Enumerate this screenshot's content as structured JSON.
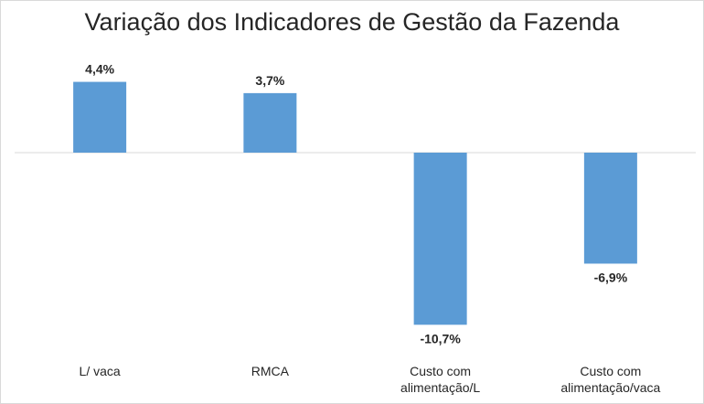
{
  "chart_data": {
    "type": "bar",
    "title": "Variação dos Indicadores de Gestão da Fazenda",
    "categories": [
      [
        "L/ vaca"
      ],
      [
        "RMCA"
      ],
      [
        "Custo com",
        "alimentação/L"
      ],
      [
        "Custo com",
        "alimentação/vaca"
      ]
    ],
    "values": [
      4.4,
      3.7,
      -10.7,
      -6.9
    ],
    "data_labels": [
      "4,4%",
      "3,7%",
      "-10,7%",
      "-6,9%"
    ],
    "unit": "%",
    "ylim": [
      -12,
      6
    ],
    "grid": false,
    "legend": "none",
    "bar_color": "#5b9bd5",
    "axis_color": "#d9d9d9"
  }
}
